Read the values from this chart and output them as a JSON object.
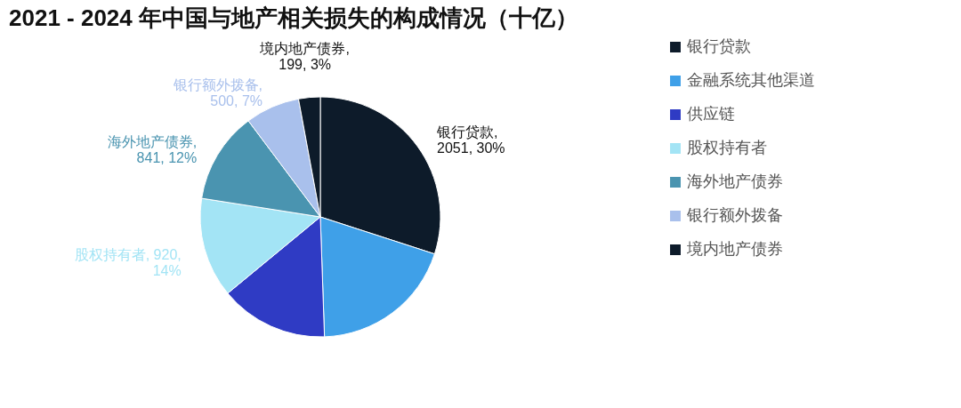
{
  "chart_data": {
    "type": "pie",
    "title": "2021 - 2024 年中国与地产相关损失的构成情况（十亿）",
    "categories": [
      "银行贷款",
      "金融系统其他渠道",
      "供应链",
      "股权持有者",
      "海外地产债券",
      "银行额外拨备",
      "境内地产债券"
    ],
    "values": [
      2051,
      1330,
      996,
      920,
      841,
      500,
      199
    ],
    "colors": [
      "#0d1b2a",
      "#3fa0e8",
      "#2f3bc4",
      "#a3e4f5",
      "#4a94b0",
      "#a9c0ec",
      "#0d1b2a"
    ],
    "value_labels": [
      "银行贷款,\n2051, 30%",
      null,
      null,
      "股权持有者, 920,\n14%",
      "海外地产债券,\n841, 12%",
      "银行额外拨备,\n500, 7%",
      "境内地产债券,\n199, 3%"
    ],
    "legend": "right"
  }
}
